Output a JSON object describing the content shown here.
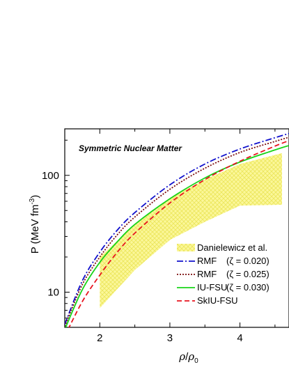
{
  "chart_data": {
    "type": "line",
    "title": "Symmetric Nuclear Matter",
    "xlabel": "ρ/ρ0",
    "ylabel": "P (MeV fm-3)",
    "xlim": [
      1.5,
      4.7
    ],
    "ylim": [
      5,
      250
    ],
    "y_scale": "log",
    "x_ticks": [
      {
        "value": 2,
        "label": "2"
      },
      {
        "value": 3,
        "label": "3"
      },
      {
        "value": 4,
        "label": "4"
      }
    ],
    "y_ticks": [
      {
        "value": 10,
        "label": "10"
      },
      {
        "value": 100,
        "label": "100"
      }
    ],
    "band": {
      "name": "Danielewicz et al.",
      "color": "#f2ee6a",
      "x": [
        2.0,
        2.5,
        3.0,
        3.5,
        4.0,
        4.6
      ],
      "lower": [
        7.3,
        15.5,
        28,
        40,
        55,
        56
      ],
      "upper": [
        20,
        38,
        64,
        92,
        125,
        155
      ]
    },
    "series": [
      {
        "name": "RMF",
        "zeta": "0.020",
        "color": "#1010cc",
        "dash": "9,3,2,3",
        "x": [
          1.5,
          1.75,
          2.0,
          2.25,
          2.5,
          3.0,
          3.5,
          4.0,
          4.5,
          4.7
        ],
        "values": [
          5.3,
          12.5,
          22,
          34,
          48,
          83,
          125,
          168,
          210,
          228
        ]
      },
      {
        "name": "RMF",
        "zeta": "0.025",
        "color": "#7a0a0a",
        "dash": "2,2",
        "x": [
          1.5,
          1.75,
          2.0,
          2.25,
          2.5,
          3.0,
          3.5,
          4.0,
          4.5,
          4.7
        ],
        "values": [
          5.1,
          11.6,
          20,
          31,
          44,
          76,
          115,
          157,
          195,
          212
        ]
      },
      {
        "name": "IU-FSU",
        "zeta": "0.030",
        "color": "#18d418",
        "dash": "",
        "x": [
          1.5,
          1.75,
          2.0,
          2.25,
          2.5,
          3.0,
          3.5,
          4.0,
          4.5,
          4.7
        ],
        "values": [
          4.8,
          10.5,
          18,
          27,
          38,
          63,
          95,
          130,
          165,
          180
        ]
      },
      {
        "name": "SkIU-FSU",
        "zeta": "",
        "color": "#e8141e",
        "dash": "7,4",
        "x": [
          1.5,
          1.75,
          2.0,
          2.25,
          2.5,
          3.0,
          3.5,
          4.0,
          4.5,
          4.7
        ],
        "values": [
          4.2,
          8.3,
          14,
          22,
          32,
          58,
          92,
          132,
          178,
          198
        ]
      }
    ],
    "legend": {
      "placement": "lower-right",
      "entries": [
        {
          "label": "Danielewicz et al.",
          "zeta_text": ""
        },
        {
          "label": "RMF",
          "zeta_text": "(ζ = 0.020)"
        },
        {
          "label": "RMF",
          "zeta_text": "(ζ = 0.025)"
        },
        {
          "label": "IU-FSU",
          "zeta_text": "(ζ = 0.030)"
        },
        {
          "label": "SkIU-FSU",
          "zeta_text": ""
        }
      ]
    }
  }
}
